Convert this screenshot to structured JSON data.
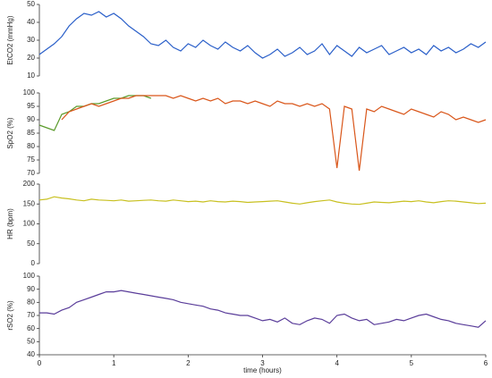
{
  "chart_data": [
    {
      "type": "line",
      "ylabel": "EtCO2 (mmHg)",
      "xlim": [
        0,
        6
      ],
      "ylim": [
        10,
        50
      ],
      "yticks": [
        10,
        20,
        30,
        40,
        50
      ],
      "x": [
        0,
        0.1,
        0.2,
        0.3,
        0.4,
        0.5,
        0.6,
        0.7,
        0.8,
        0.9,
        1,
        1.1,
        1.2,
        1.3,
        1.4,
        1.5,
        1.6,
        1.7,
        1.8,
        1.9,
        2,
        2.1,
        2.2,
        2.3,
        2.4,
        2.5,
        2.6,
        2.7,
        2.8,
        2.9,
        3,
        3.1,
        3.2,
        3.3,
        3.4,
        3.5,
        3.6,
        3.7,
        3.8,
        3.9,
        4,
        4.1,
        4.2,
        4.3,
        4.4,
        4.5,
        4.6,
        4.7,
        4.8,
        4.9,
        5,
        5.1,
        5.2,
        5.3,
        5.4,
        5.5,
        5.6,
        5.7,
        5.8,
        5.9,
        6
      ],
      "series": [
        {
          "color": "#2a5fc9",
          "values": [
            22,
            25,
            28,
            32,
            38,
            42,
            45,
            44,
            46,
            43,
            45,
            42,
            38,
            35,
            32,
            28,
            27,
            30,
            26,
            24,
            28,
            26,
            30,
            27,
            25,
            29,
            26,
            24,
            27,
            23,
            20,
            22,
            25,
            21,
            23,
            26,
            22,
            24,
            28,
            22,
            27,
            24,
            21,
            26,
            23,
            25,
            27,
            22,
            24,
            26,
            23,
            25,
            22,
            27,
            24,
            26,
            23,
            25,
            28,
            26,
            29
          ]
        }
      ]
    },
    {
      "type": "line",
      "ylabel": "SpO2 (%)",
      "xlim": [
        0,
        6
      ],
      "ylim": [
        70,
        100
      ],
      "yticks": [
        70,
        75,
        80,
        85,
        90,
        95,
        100
      ],
      "x": [
        0,
        0.1,
        0.2,
        0.3,
        0.4,
        0.5,
        0.6,
        0.7,
        0.8,
        0.9,
        1,
        1.1,
        1.2,
        1.3,
        1.4,
        1.5,
        1.6,
        1.7,
        1.8,
        1.9,
        2,
        2.1,
        2.2,
        2.3,
        2.4,
        2.5,
        2.6,
        2.7,
        2.8,
        2.9,
        3,
        3.1,
        3.2,
        3.3,
        3.4,
        3.5,
        3.6,
        3.7,
        3.8,
        3.9,
        4,
        4.1,
        4.2,
        4.3,
        4.4,
        4.5,
        4.6,
        4.7,
        4.8,
        4.9,
        5,
        5.1,
        5.2,
        5.3,
        5.4,
        5.5,
        5.6,
        5.7,
        5.8,
        5.9,
        6
      ],
      "series": [
        {
          "color": "#5a9a2a",
          "values": [
            88,
            87,
            86,
            92,
            93,
            95,
            95,
            96,
            96,
            97,
            98,
            98,
            99,
            99,
            99,
            98,
            null,
            null,
            null,
            null,
            null,
            null,
            null,
            null,
            null,
            null,
            null,
            null,
            null,
            null,
            null,
            null,
            null,
            null,
            null,
            null,
            null,
            null,
            null,
            null,
            null,
            null,
            null,
            null,
            null,
            null,
            null,
            null,
            null,
            null,
            null,
            null,
            null,
            null,
            null,
            null,
            null,
            null,
            null,
            null,
            null
          ]
        },
        {
          "color": "#d9561a",
          "values": [
            null,
            null,
            null,
            90,
            93,
            94,
            95,
            96,
            95,
            96,
            97,
            98,
            98,
            99,
            99,
            99,
            99,
            99,
            98,
            99,
            98,
            97,
            98,
            97,
            98,
            96,
            97,
            97,
            96,
            97,
            96,
            95,
            97,
            96,
            96,
            95,
            96,
            95,
            96,
            94,
            72,
            95,
            94,
            71,
            94,
            93,
            95,
            94,
            93,
            92,
            94,
            93,
            92,
            91,
            93,
            92,
            90,
            91,
            90,
            89,
            90
          ]
        }
      ]
    },
    {
      "type": "line",
      "ylabel": "HR (bpm)",
      "xlim": [
        0,
        6
      ],
      "ylim": [
        0,
        200
      ],
      "yticks": [
        0,
        50,
        100,
        150,
        200
      ],
      "x": [
        0,
        0.1,
        0.2,
        0.3,
        0.4,
        0.5,
        0.6,
        0.7,
        0.8,
        0.9,
        1,
        1.1,
        1.2,
        1.3,
        1.4,
        1.5,
        1.6,
        1.7,
        1.8,
        1.9,
        2,
        2.1,
        2.2,
        2.3,
        2.4,
        2.5,
        2.6,
        2.7,
        2.8,
        2.9,
        3,
        3.1,
        3.2,
        3.3,
        3.4,
        3.5,
        3.6,
        3.7,
        3.8,
        3.9,
        4,
        4.1,
        4.2,
        4.3,
        4.4,
        4.5,
        4.6,
        4.7,
        4.8,
        4.9,
        5,
        5.1,
        5.2,
        5.3,
        5.4,
        5.5,
        5.6,
        5.7,
        5.8,
        5.9,
        6
      ],
      "series": [
        {
          "color": "#c8c020",
          "values": [
            160,
            162,
            168,
            165,
            163,
            160,
            158,
            162,
            160,
            159,
            158,
            160,
            157,
            158,
            159,
            160,
            158,
            157,
            160,
            158,
            156,
            157,
            155,
            158,
            156,
            155,
            157,
            156,
            154,
            155,
            156,
            157,
            158,
            155,
            152,
            150,
            153,
            156,
            158,
            160,
            155,
            152,
            150,
            149,
            152,
            155,
            154,
            153,
            155,
            157,
            156,
            158,
            155,
            153,
            156,
            158,
            157,
            155,
            153,
            151,
            152
          ]
        }
      ]
    },
    {
      "type": "line",
      "ylabel": "rSO2 (%)",
      "xlabel": "time (hours)",
      "xlim": [
        0,
        6
      ],
      "xticks": [
        0,
        1,
        2,
        3,
        4,
        5,
        6
      ],
      "ylim": [
        40,
        100
      ],
      "yticks": [
        40,
        50,
        60,
        70,
        80,
        90,
        100
      ],
      "x": [
        0,
        0.1,
        0.2,
        0.3,
        0.4,
        0.5,
        0.6,
        0.7,
        0.8,
        0.9,
        1,
        1.1,
        1.2,
        1.3,
        1.4,
        1.5,
        1.6,
        1.7,
        1.8,
        1.9,
        2,
        2.1,
        2.2,
        2.3,
        2.4,
        2.5,
        2.6,
        2.7,
        2.8,
        2.9,
        3,
        3.1,
        3.2,
        3.3,
        3.4,
        3.5,
        3.6,
        3.7,
        3.8,
        3.9,
        4,
        4.1,
        4.2,
        4.3,
        4.4,
        4.5,
        4.6,
        4.7,
        4.8,
        4.9,
        5,
        5.1,
        5.2,
        5.3,
        5.4,
        5.5,
        5.6,
        5.7,
        5.8,
        5.9,
        6
      ],
      "series": [
        {
          "color": "#5a3d9a",
          "values": [
            72,
            72,
            71,
            74,
            76,
            80,
            82,
            84,
            86,
            88,
            88,
            89,
            88,
            87,
            86,
            85,
            84,
            83,
            82,
            80,
            79,
            78,
            77,
            75,
            74,
            72,
            71,
            70,
            70,
            68,
            66,
            67,
            65,
            68,
            64,
            63,
            66,
            68,
            67,
            64,
            70,
            71,
            68,
            66,
            67,
            63,
            64,
            65,
            67,
            66,
            68,
            70,
            71,
            69,
            67,
            66,
            64,
            63,
            62,
            61,
            66
          ]
        }
      ]
    }
  ]
}
